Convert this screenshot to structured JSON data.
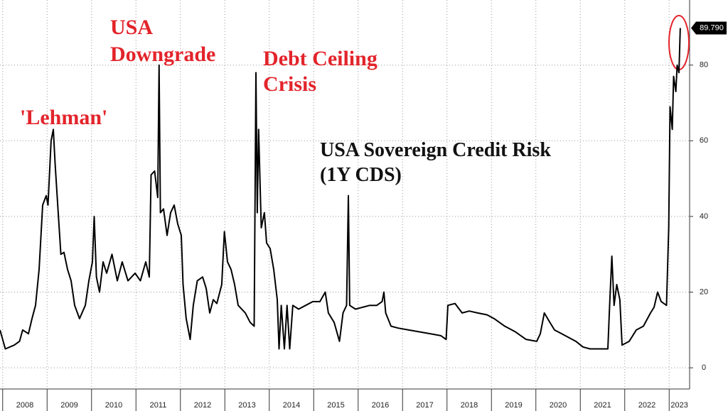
{
  "chart_data": {
    "type": "line",
    "title": [
      "USA Sovereign Credit Risk",
      "(1Y CDS)"
    ],
    "annotations": [
      {
        "lines": [
          "'Lehman'"
        ]
      },
      {
        "lines": [
          "USA",
          "Downgrade"
        ]
      },
      {
        "lines": [
          "Debt Ceiling",
          "Crisis"
        ]
      }
    ],
    "x": [
      2007.94,
      2008.06,
      2008.26,
      2008.38,
      2008.45,
      2008.58,
      2008.66,
      2008.74,
      2008.82,
      2008.9,
      2008.98,
      2009.02,
      2009.09,
      2009.14,
      2009.18,
      2009.25,
      2009.31,
      2009.38,
      2009.46,
      2009.54,
      2009.62,
      2009.73,
      2009.86,
      2009.94,
      2010.02,
      2010.06,
      2010.11,
      2010.18,
      2010.26,
      2010.34,
      2010.46,
      2010.58,
      2010.69,
      2010.82,
      2010.98,
      2011.1,
      2011.22,
      2011.3,
      2011.34,
      2011.42,
      2011.49,
      2011.52,
      2011.55,
      2011.62,
      2011.7,
      2011.78,
      2011.86,
      2011.94,
      2012.02,
      2012.06,
      2012.13,
      2012.22,
      2012.29,
      2012.38,
      2012.5,
      2012.58,
      2012.66,
      2012.74,
      2012.82,
      2012.93,
      2012.99,
      2013.06,
      2013.14,
      2013.22,
      2013.3,
      2013.46,
      2013.57,
      2013.66,
      2013.7,
      2013.73,
      2013.76,
      2013.82,
      2013.89,
      2013.94,
      2014.02,
      2014.1,
      2014.18,
      2014.22,
      2014.27,
      2014.34,
      2014.4,
      2014.46,
      2014.53,
      2014.66,
      2014.82,
      2014.98,
      2015.14,
      2015.26,
      2015.33,
      2015.46,
      2015.58,
      2015.66,
      2015.74,
      2015.78,
      2015.81,
      2015.94,
      2016.1,
      2016.26,
      2016.42,
      2016.54,
      2016.58,
      2016.62,
      2016.74,
      2016.9,
      2017.14,
      2017.38,
      2017.62,
      2017.86,
      2017.98,
      2018.02,
      2018.18,
      2018.34,
      2018.5,
      2018.69,
      2018.9,
      2019.06,
      2019.3,
      2019.54,
      2019.78,
      2020.02,
      2020.1,
      2020.19,
      2020.29,
      2020.42,
      2020.58,
      2020.74,
      2020.9,
      2021.06,
      2021.22,
      2021.38,
      2021.62,
      2021.66,
      2021.71,
      2021.76,
      2021.82,
      2021.89,
      2021.94,
      2022.1,
      2022.26,
      2022.42,
      2022.58,
      2022.66,
      2022.74,
      2022.82,
      2022.94,
      2022.99,
      2023.02,
      2023.07,
      2023.1,
      2023.15,
      2023.18,
      2023.22,
      2023.25
    ],
    "series": [
      {
        "name": "USA 1Y CDS",
        "color": "#000000",
        "last_value_label": "89.790",
        "values": [
          10,
          5,
          6,
          7,
          10,
          9,
          13,
          16.5,
          26,
          43,
          45.5,
          43,
          60,
          63,
          54,
          41,
          30,
          30.5,
          26,
          23,
          16.5,
          13,
          16.5,
          23,
          28,
          40,
          24,
          20,
          28,
          25,
          30,
          23,
          28,
          23,
          25,
          23,
          28,
          24,
          51,
          52,
          45,
          80,
          41,
          42,
          35,
          41,
          43,
          38,
          35,
          22,
          13,
          7.5,
          16.5,
          23,
          24,
          21,
          14.5,
          18,
          17,
          22,
          36,
          28,
          26,
          22,
          16.5,
          14.5,
          12,
          11,
          78,
          41,
          63,
          37,
          41,
          33,
          31.5,
          26,
          18,
          5,
          16.5,
          5,
          16.5,
          5,
          16.5,
          15.5,
          16.5,
          17.5,
          17.5,
          20,
          14.5,
          12,
          7,
          14.5,
          16.5,
          45.5,
          16.5,
          15.5,
          16,
          16.5,
          16.5,
          17.5,
          20,
          14.5,
          11,
          10.5,
          10,
          9.5,
          9,
          8.5,
          7.5,
          16.5,
          17,
          14.5,
          15,
          14.5,
          14,
          13,
          11,
          9.5,
          7.5,
          7,
          9,
          14.5,
          12.5,
          10,
          9,
          8,
          7,
          5.5,
          5,
          5,
          5,
          16.5,
          29.5,
          16.5,
          22,
          18,
          6,
          7,
          10,
          11,
          14.5,
          16,
          20,
          17.5,
          16.5,
          37,
          69,
          63,
          77,
          73,
          80,
          78,
          89.79
        ]
      }
    ],
    "xlim": [
      2007.94,
      2023.46
    ],
    "xticks": [
      2008,
      2009,
      2010,
      2011,
      2012,
      2013,
      2014,
      2015,
      2016,
      2017,
      2018,
      2019,
      2020,
      2021,
      2022,
      2023
    ],
    "ylim": [
      -5.6,
      97.2
    ],
    "yticks": [
      0,
      20,
      40,
      60,
      80
    ],
    "y_axis_side": "right",
    "grid": true
  }
}
